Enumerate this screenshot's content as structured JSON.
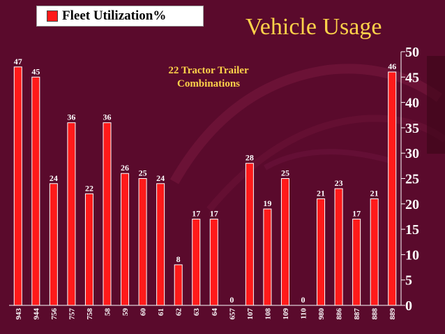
{
  "slide": {
    "title": "Vehicle Usage"
  },
  "legend": {
    "label": "Fleet Utilization%"
  },
  "annotation": {
    "line1": "22 Tractor Trailer",
    "line2": "Combinations"
  },
  "colors": {
    "bar": "#ff1a1a",
    "label": "#ffffff",
    "title": "#ffd24a",
    "background": "#5a0a2c"
  },
  "chart_data": {
    "type": "bar",
    "categories": [
      "943",
      "944",
      "756",
      "757",
      "758",
      "58",
      "59",
      "60",
      "61",
      "62",
      "63",
      "64",
      "657",
      "107",
      "108",
      "109",
      "110",
      "980",
      "886",
      "887",
      "888",
      "889"
    ],
    "series": [
      {
        "name": "Fleet Utilization%",
        "values": [
          47,
          45,
          24,
          36,
          22,
          36,
          26,
          25,
          24,
          8,
          17,
          17,
          0,
          28,
          19,
          25,
          0,
          21,
          23,
          17,
          21,
          46
        ]
      }
    ],
    "ylim": [
      0,
      50
    ],
    "yticks": [
      0,
      5,
      10,
      15,
      20,
      25,
      30,
      35,
      40,
      45,
      50
    ],
    "y_axis_side": "right",
    "grid": false,
    "legend_position": "top-left",
    "data_labels": true
  }
}
